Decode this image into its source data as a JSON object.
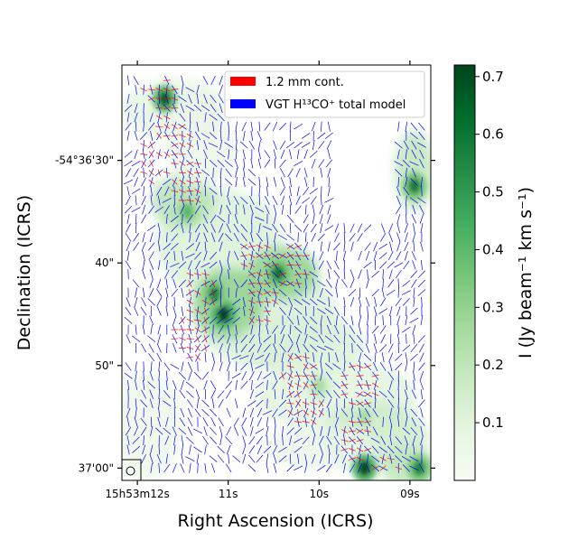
{
  "chart_data": {
    "type": "heatmap",
    "title": "",
    "xlabel": "Right Ascension (ICRS)",
    "ylabel": "Declination (ICRS)",
    "x_ticks": [
      {
        "label": "15h53m12s",
        "sec": 12
      },
      {
        "label": "11s",
        "sec": 11
      },
      {
        "label": "10s",
        "sec": 10
      },
      {
        "label": "09s",
        "sec": 9
      }
    ],
    "y_ticks": [
      {
        "label": "-54°36'30\"",
        "arcsec": 30
      },
      {
        "label": "40\"",
        "arcsec": 40
      },
      {
        "label": "50\"",
        "arcsec": 50
      },
      {
        "label": "37'00\"",
        "arcsec": 60
      }
    ],
    "xlim_sec": [
      12.17,
      8.77
    ],
    "ylim_arcsec": [
      20.7,
      61.2
    ],
    "colorbar": {
      "label": "I (Jy beam⁻¹ km s⁻¹)",
      "colormap": "Greens",
      "range": [
        0.0,
        0.72
      ],
      "ticks": [
        "0.1",
        "0.2",
        "0.3",
        "0.4",
        "0.5",
        "0.6",
        "0.7"
      ]
    },
    "legend": {
      "placement": "top-right",
      "entries": [
        {
          "name": "1.2 mm cont.",
          "color": "#ff0000"
        },
        {
          "name": "VGT H¹³CO⁺ total model",
          "color": "#0000ff"
        }
      ]
    },
    "intensity_peaks": [
      {
        "ra_sec": 11.7,
        "dec_arcsec": 24.0,
        "value": 0.65
      },
      {
        "ra_sec": 11.05,
        "dec_arcsec": 45.0,
        "value": 0.72
      },
      {
        "ra_sec": 11.15,
        "dec_arcsec": 43.0,
        "value": 0.55
      },
      {
        "ra_sec": 10.45,
        "dec_arcsec": 41.0,
        "value": 0.6
      },
      {
        "ra_sec": 11.45,
        "dec_arcsec": 35.0,
        "value": 0.4
      },
      {
        "ra_sec": 9.5,
        "dec_arcsec": 60.0,
        "value": 0.7
      },
      {
        "ra_sec": 8.9,
        "dec_arcsec": 60.0,
        "value": 0.55
      },
      {
        "ra_sec": 8.95,
        "dec_arcsec": 32.5,
        "value": 0.58
      },
      {
        "ra_sec": 10.0,
        "dec_arcsec": 52.0,
        "value": 0.25
      },
      {
        "ra_sec": 9.5,
        "dec_arcsec": 55.0,
        "value": 0.25
      }
    ]
  }
}
